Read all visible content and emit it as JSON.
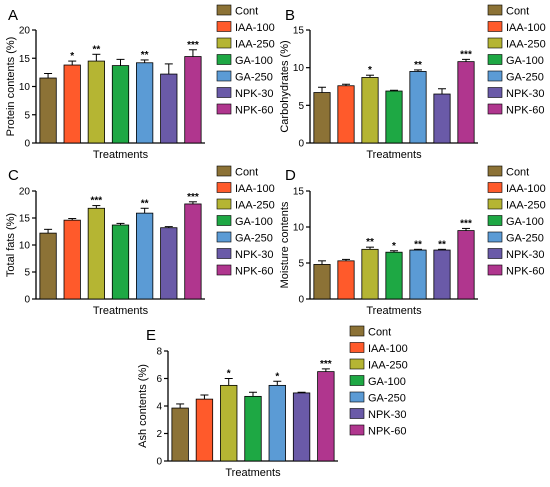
{
  "colors": [
    "#8C7236",
    "#FF5A2B",
    "#B5B533",
    "#1EA844",
    "#5B9BD5",
    "#6A5AA8",
    "#B0368E"
  ],
  "chart_data": [
    {
      "type": "bar",
      "panel": "A",
      "ylabel": "Protein contents (%)",
      "xlabel": "Treatments",
      "ylim": [
        0,
        20
      ],
      "yticks": [
        "0",
        "5",
        "10",
        "15",
        "20"
      ],
      "categories": [
        "Cont",
        "IAA-100",
        "IAA-250",
        "GA-100",
        "GA-250",
        "NPK-30",
        "NPK-60"
      ],
      "values": [
        11.5,
        13.8,
        14.5,
        13.7,
        14.2,
        12.2,
        15.3
      ],
      "errors": [
        0.8,
        0.7,
        1.2,
        1.1,
        0.5,
        1.8,
        1.2
      ],
      "significance": [
        "",
        "*",
        "**",
        "",
        "**",
        "",
        "***"
      ],
      "legend": [
        "Cont",
        "IAA-100",
        "IAA-250",
        "GA-100",
        "GA-250",
        "NPK-30",
        "NPK-60"
      ]
    },
    {
      "type": "bar",
      "panel": "B",
      "ylabel": "Carbohydrates (%)",
      "xlabel": "Treatments",
      "ylim": [
        0,
        15
      ],
      "yticks": [
        "0",
        "5",
        "10",
        "15"
      ],
      "categories": [
        "Cont",
        "IAA-100",
        "IAA-250",
        "GA-100",
        "GA-250",
        "NPK-30",
        "NPK-60"
      ],
      "values": [
        6.7,
        7.6,
        8.7,
        6.9,
        9.5,
        6.5,
        10.8
      ],
      "errors": [
        0.7,
        0.2,
        0.3,
        0.1,
        0.2,
        0.7,
        0.3
      ],
      "significance": [
        "",
        "",
        "*",
        "",
        "**",
        "",
        "***"
      ],
      "legend": [
        "Cont",
        "IAA-100",
        "IAA-250",
        "GA-100",
        "GA-250",
        "NPK-30",
        "NPK-60"
      ]
    },
    {
      "type": "bar",
      "panel": "C",
      "ylabel": "Total fats (%)",
      "xlabel": "Treatments",
      "ylim": [
        0,
        20
      ],
      "yticks": [
        "0",
        "5",
        "10",
        "15",
        "20"
      ],
      "categories": [
        "Cont",
        "IAA-100",
        "IAA-250",
        "GA-100",
        "GA-250",
        "NPK-30",
        "NPK-60"
      ],
      "values": [
        12.2,
        14.6,
        16.8,
        13.7,
        15.9,
        13.2,
        17.6
      ],
      "errors": [
        0.7,
        0.3,
        0.5,
        0.3,
        0.9,
        0.2,
        0.4
      ],
      "significance": [
        "",
        "",
        "***",
        "",
        "**",
        "",
        "***"
      ],
      "legend": [
        "Cont",
        "IAA-100",
        "IAA-250",
        "GA-100",
        "GA-250",
        "NPK-30",
        "NPK-60"
      ]
    },
    {
      "type": "bar",
      "panel": "D",
      "ylabel": "Moisture contents",
      "xlabel": "Treatments",
      "ylim": [
        0,
        15
      ],
      "yticks": [
        "0",
        "5",
        "10",
        "15"
      ],
      "categories": [
        "Cont",
        "IAA-100",
        "IAA-250",
        "GA-100",
        "GA-250",
        "NPK-30",
        "NPK-60"
      ],
      "values": [
        4.8,
        5.3,
        6.9,
        6.5,
        6.8,
        6.8,
        9.5
      ],
      "errors": [
        0.5,
        0.2,
        0.3,
        0.2,
        0.1,
        0.1,
        0.3
      ],
      "significance": [
        "",
        "",
        "**",
        "*",
        "**",
        "**",
        "***"
      ],
      "legend": [
        "Cont",
        "IAA-100",
        "IAA-250",
        "GA-100",
        "GA-250",
        "NPK-30",
        "NPK-60"
      ]
    },
    {
      "type": "bar",
      "panel": "E",
      "ylabel": "Ash contents (%)",
      "xlabel": "Treatments",
      "ylim": [
        0,
        8
      ],
      "yticks": [
        "0",
        "2",
        "4",
        "6",
        "8"
      ],
      "categories": [
        "Cont",
        "IAA-100",
        "IAA-250",
        "GA-100",
        "GA-250",
        "NPK-30",
        "NPK-60"
      ],
      "values": [
        3.85,
        4.5,
        5.5,
        4.7,
        5.5,
        4.95,
        6.5
      ],
      "errors": [
        0.3,
        0.3,
        0.5,
        0.3,
        0.3,
        0.05,
        0.2
      ],
      "significance": [
        "",
        "",
        "*",
        "",
        "*",
        "",
        "***"
      ],
      "legend": [
        "Cont",
        "IAA-100",
        "IAA-250",
        "GA-100",
        "GA-250",
        "NPK-30",
        "NPK-60"
      ]
    }
  ]
}
